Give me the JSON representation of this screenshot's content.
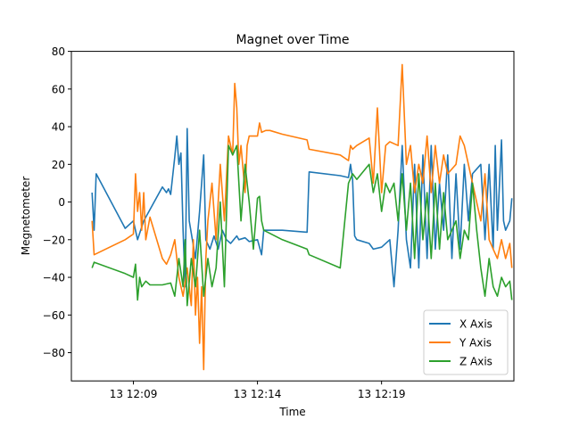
{
  "chart_data": {
    "type": "line",
    "title": "Magnet over Time",
    "xlabel": "Time",
    "ylabel": "Megnetometer",
    "x_range": [
      "12:06:30",
      "12:24:20"
    ],
    "x_ticks": [
      {
        "value": "12:09",
        "label": "13 12:09"
      },
      {
        "value": "12:14",
        "label": "13 12:14"
      },
      {
        "value": "12:19",
        "label": "13 12:19"
      }
    ],
    "ylim": [
      -95,
      80
    ],
    "y_ticks": [
      80,
      60,
      40,
      20,
      0,
      -20,
      -40,
      -60,
      -80
    ],
    "y_tick_labels": [
      "80",
      "60",
      "40",
      "20",
      "0",
      "−20",
      "−40",
      "−60",
      "−80"
    ],
    "grid": false,
    "legend_position": "bottom-right",
    "series": [
      {
        "name": "X Axis",
        "color": "#1f77b4",
        "points": [
          [
            "12:07:20",
            5
          ],
          [
            "12:07:25",
            -15
          ],
          [
            "12:07:30",
            15
          ],
          [
            "12:08:40",
            -14
          ],
          [
            "12:09:00",
            -10
          ],
          [
            "12:09:10",
            -20
          ],
          [
            "12:09:25",
            -10
          ],
          [
            "12:10:10",
            8
          ],
          [
            "12:10:20",
            5
          ],
          [
            "12:10:25",
            7
          ],
          [
            "12:10:30",
            4
          ],
          [
            "12:10:40",
            24
          ],
          [
            "12:10:45",
            35
          ],
          [
            "12:10:50",
            20
          ],
          [
            "12:10:55",
            26
          ],
          [
            "12:11:00",
            -15
          ],
          [
            "12:11:05",
            -45
          ],
          [
            "12:11:10",
            39
          ],
          [
            "12:11:15",
            -10
          ],
          [
            "12:11:30",
            -30
          ],
          [
            "12:11:40",
            -5
          ],
          [
            "12:11:50",
            25
          ],
          [
            "12:11:55",
            -20
          ],
          [
            "12:12:05",
            -25
          ],
          [
            "12:12:15",
            -18
          ],
          [
            "12:12:25",
            -25
          ],
          [
            "12:12:35",
            -15
          ],
          [
            "12:12:45",
            -20
          ],
          [
            "12:12:55",
            -22
          ],
          [
            "12:13:10",
            -18
          ],
          [
            "12:13:15",
            -20
          ],
          [
            "12:13:30",
            -19
          ],
          [
            "12:13:40",
            -21
          ],
          [
            "12:14:00",
            -20
          ],
          [
            "12:14:10",
            -28
          ],
          [
            "12:14:15",
            -15
          ],
          [
            "12:15:00",
            -15
          ],
          [
            "12:16:00",
            -16
          ],
          [
            "12:16:05",
            16
          ],
          [
            "12:17:20",
            14
          ],
          [
            "12:17:40",
            13
          ],
          [
            "12:17:45",
            20
          ],
          [
            "12:17:50",
            12
          ],
          [
            "12:17:55",
            -18
          ],
          [
            "12:18:00",
            -20
          ],
          [
            "12:18:30",
            -22
          ],
          [
            "12:18:40",
            -25
          ],
          [
            "12:19:00",
            -24
          ],
          [
            "12:19:20",
            -20
          ],
          [
            "12:19:30",
            -45
          ],
          [
            "12:19:40",
            -15
          ],
          [
            "12:19:50",
            30
          ],
          [
            "12:20:00",
            -20
          ],
          [
            "12:20:10",
            -35
          ],
          [
            "12:20:20",
            20
          ],
          [
            "12:20:30",
            -35
          ],
          [
            "12:20:40",
            25
          ],
          [
            "12:20:50",
            -30
          ],
          [
            "12:21:00",
            30
          ],
          [
            "12:21:10",
            -25
          ],
          [
            "12:21:20",
            10
          ],
          [
            "12:21:30",
            -15
          ],
          [
            "12:21:40",
            25
          ],
          [
            "12:21:50",
            -30
          ],
          [
            "12:22:00",
            15
          ],
          [
            "12:22:10",
            -25
          ],
          [
            "12:22:20",
            20
          ],
          [
            "12:22:30",
            -10
          ],
          [
            "12:22:40",
            15
          ],
          [
            "12:23:00",
            20
          ],
          [
            "12:23:10",
            -20
          ],
          [
            "12:23:20",
            20
          ],
          [
            "12:23:30",
            -25
          ],
          [
            "12:23:35",
            30
          ],
          [
            "12:23:40",
            -15
          ],
          [
            "12:23:50",
            33
          ],
          [
            "12:23:55",
            -10
          ],
          [
            "12:24:00",
            -15
          ],
          [
            "12:24:10",
            -10
          ],
          [
            "12:24:15",
            2
          ]
        ]
      },
      {
        "name": "Y Axis",
        "color": "#ff7f0e",
        "points": [
          [
            "12:07:20",
            -10
          ],
          [
            "12:07:25",
            -28
          ],
          [
            "12:08:40",
            -20
          ],
          [
            "12:09:00",
            -17
          ],
          [
            "12:09:05",
            15
          ],
          [
            "12:09:10",
            -5
          ],
          [
            "12:09:15",
            5
          ],
          [
            "12:09:20",
            -15
          ],
          [
            "12:09:25",
            5
          ],
          [
            "12:09:30",
            -20
          ],
          [
            "12:09:40",
            -8
          ],
          [
            "12:10:10",
            -30
          ],
          [
            "12:10:20",
            -33
          ],
          [
            "12:10:30",
            -28
          ],
          [
            "12:10:40",
            -20
          ],
          [
            "12:10:50",
            -40
          ],
          [
            "12:11:00",
            -50
          ],
          [
            "12:11:10",
            -35
          ],
          [
            "12:11:20",
            -55
          ],
          [
            "12:11:25",
            -20
          ],
          [
            "12:11:30",
            -60
          ],
          [
            "12:11:35",
            -40
          ],
          [
            "12:11:40",
            -75
          ],
          [
            "12:11:45",
            -45
          ],
          [
            "12:11:50",
            -89
          ],
          [
            "12:11:55",
            -30
          ],
          [
            "12:12:00",
            -10
          ],
          [
            "12:12:10",
            10
          ],
          [
            "12:12:20",
            -20
          ],
          [
            "12:12:30",
            20
          ],
          [
            "12:12:40",
            -10
          ],
          [
            "12:12:50",
            35
          ],
          [
            "12:13:00",
            25
          ],
          [
            "12:13:05",
            63
          ],
          [
            "12:13:10",
            50
          ],
          [
            "12:13:15",
            20
          ],
          [
            "12:13:20",
            30
          ],
          [
            "12:13:30",
            5
          ],
          [
            "12:13:35",
            30
          ],
          [
            "12:13:40",
            35
          ],
          [
            "12:14:00",
            35
          ],
          [
            "12:14:05",
            42
          ],
          [
            "12:14:10",
            37
          ],
          [
            "12:14:20",
            38
          ],
          [
            "12:14:30",
            38
          ],
          [
            "12:15:00",
            36
          ],
          [
            "12:16:00",
            33
          ],
          [
            "12:16:05",
            28
          ],
          [
            "12:17:20",
            25
          ],
          [
            "12:17:40",
            22
          ],
          [
            "12:17:45",
            30
          ],
          [
            "12:17:50",
            28
          ],
          [
            "12:18:00",
            30
          ],
          [
            "12:18:30",
            34
          ],
          [
            "12:18:40",
            10
          ],
          [
            "12:18:50",
            50
          ],
          [
            "12:19:00",
            5
          ],
          [
            "12:19:10",
            30
          ],
          [
            "12:19:20",
            32
          ],
          [
            "12:19:40",
            30
          ],
          [
            "12:19:50",
            73
          ],
          [
            "12:20:00",
            20
          ],
          [
            "12:20:10",
            30
          ],
          [
            "12:20:20",
            5
          ],
          [
            "12:20:30",
            20
          ],
          [
            "12:20:40",
            10
          ],
          [
            "12:20:50",
            35
          ],
          [
            "12:21:00",
            5
          ],
          [
            "12:21:10",
            30
          ],
          [
            "12:21:20",
            10
          ],
          [
            "12:21:30",
            25
          ],
          [
            "12:21:40",
            15
          ],
          [
            "12:22:00",
            20
          ],
          [
            "12:22:10",
            35
          ],
          [
            "12:22:20",
            30
          ],
          [
            "12:22:30",
            20
          ],
          [
            "12:22:40",
            10
          ],
          [
            "12:23:00",
            -10
          ],
          [
            "12:23:10",
            15
          ],
          [
            "12:23:20",
            -20
          ],
          [
            "12:23:30",
            -25
          ],
          [
            "12:23:40",
            -30
          ],
          [
            "12:23:50",
            -20
          ],
          [
            "12:24:00",
            -30
          ],
          [
            "12:24:10",
            -22
          ],
          [
            "12:24:15",
            -35
          ]
        ]
      },
      {
        "name": "Z Axis",
        "color": "#2ca02c",
        "points": [
          [
            "12:07:20",
            -35
          ],
          [
            "12:07:25",
            -32
          ],
          [
            "12:08:40",
            -38
          ],
          [
            "12:09:00",
            -40
          ],
          [
            "12:09:05",
            -33
          ],
          [
            "12:09:10",
            -52
          ],
          [
            "12:09:15",
            -40
          ],
          [
            "12:09:20",
            -45
          ],
          [
            "12:09:30",
            -42
          ],
          [
            "12:09:40",
            -44
          ],
          [
            "12:10:10",
            -44
          ],
          [
            "12:10:30",
            -43
          ],
          [
            "12:10:40",
            -50
          ],
          [
            "12:10:50",
            -30
          ],
          [
            "12:11:00",
            -45
          ],
          [
            "12:11:05",
            -20
          ],
          [
            "12:11:10",
            -55
          ],
          [
            "12:11:20",
            -30
          ],
          [
            "12:11:30",
            -45
          ],
          [
            "12:11:40",
            -15
          ],
          [
            "12:11:50",
            -50
          ],
          [
            "12:12:00",
            -30
          ],
          [
            "12:12:10",
            -45
          ],
          [
            "12:12:20",
            -35
          ],
          [
            "12:12:30",
            0
          ],
          [
            "12:12:40",
            -45
          ],
          [
            "12:12:50",
            30
          ],
          [
            "12:13:00",
            25
          ],
          [
            "12:13:10",
            30
          ],
          [
            "12:13:20",
            -10
          ],
          [
            "12:13:30",
            20
          ],
          [
            "12:13:40",
            0
          ],
          [
            "12:13:50",
            -25
          ],
          [
            "12:14:00",
            2
          ],
          [
            "12:14:05",
            3
          ],
          [
            "12:14:10",
            -10
          ],
          [
            "12:14:15",
            -15
          ],
          [
            "12:15:00",
            -20
          ],
          [
            "12:16:00",
            -25
          ],
          [
            "12:16:05",
            -28
          ],
          [
            "12:17:20",
            -35
          ],
          [
            "12:17:40",
            10
          ],
          [
            "12:17:50",
            15
          ],
          [
            "12:18:00",
            12
          ],
          [
            "12:18:30",
            20
          ],
          [
            "12:18:40",
            5
          ],
          [
            "12:18:50",
            15
          ],
          [
            "12:19:00",
            -5
          ],
          [
            "12:19:10",
            10
          ],
          [
            "12:19:20",
            5
          ],
          [
            "12:19:30",
            10
          ],
          [
            "12:19:40",
            -10
          ],
          [
            "12:19:50",
            15
          ],
          [
            "12:20:00",
            -15
          ],
          [
            "12:20:10",
            10
          ],
          [
            "12:20:20",
            -30
          ],
          [
            "12:20:30",
            15
          ],
          [
            "12:20:40",
            -20
          ],
          [
            "12:20:50",
            5
          ],
          [
            "12:21:00",
            -30
          ],
          [
            "12:21:10",
            10
          ],
          [
            "12:21:20",
            -25
          ],
          [
            "12:21:30",
            5
          ],
          [
            "12:21:40",
            -20
          ],
          [
            "12:22:00",
            -10
          ],
          [
            "12:22:10",
            -30
          ],
          [
            "12:22:20",
            -15
          ],
          [
            "12:22:30",
            -20
          ],
          [
            "12:22:40",
            10
          ],
          [
            "12:22:50",
            -15
          ],
          [
            "12:23:00",
            -35
          ],
          [
            "12:23:10",
            -50
          ],
          [
            "12:23:20",
            -30
          ],
          [
            "12:23:30",
            -45
          ],
          [
            "12:23:40",
            -50
          ],
          [
            "12:23:50",
            -40
          ],
          [
            "12:24:00",
            -45
          ],
          [
            "12:24:10",
            -42
          ],
          [
            "12:24:15",
            -52
          ]
        ]
      }
    ]
  }
}
